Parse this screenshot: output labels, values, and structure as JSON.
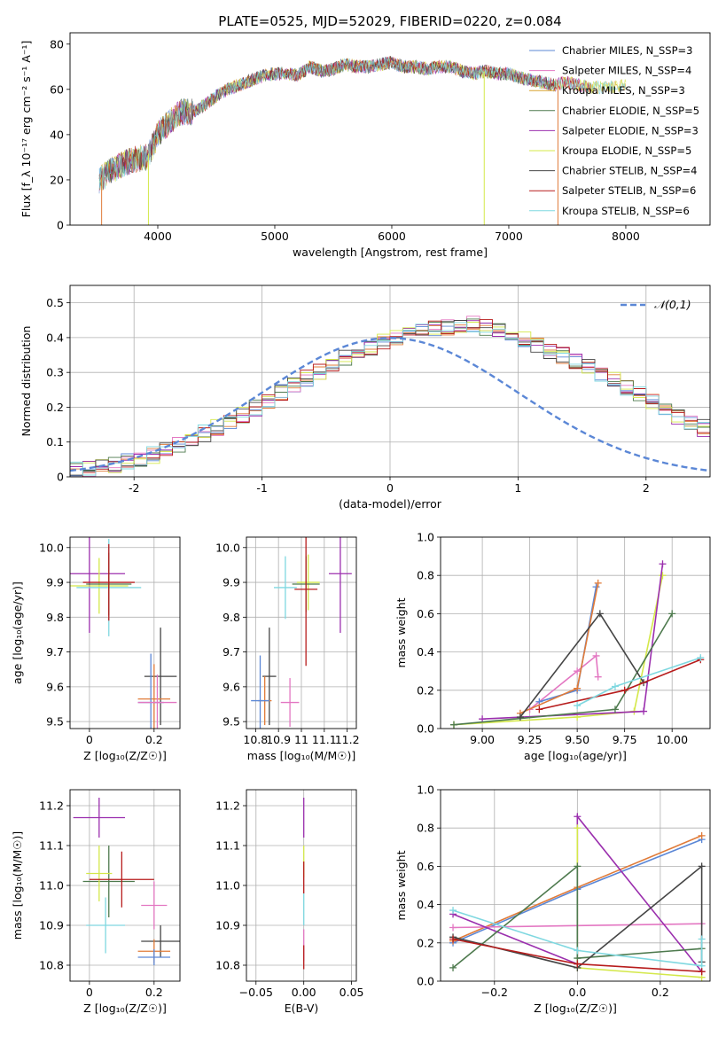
{
  "figure": {
    "title": "PLATE=0525, MJD=52029, FIBERID=0220, z=0.084"
  },
  "chart_data": [
    {
      "id": "spectrum",
      "type": "line",
      "xlabel": "wavelength [Angstrom, rest frame]",
      "ylabel": "Flux [f_λ 10⁻¹⁷ erg cm⁻² s⁻¹ A⁻¹]",
      "xlim": [
        3250,
        8720
      ],
      "ylim": [
        0,
        85
      ],
      "xticks": [
        4000,
        5000,
        6000,
        7000,
        8000
      ],
      "yticks": [
        0,
        20,
        40,
        60,
        80
      ],
      "grid": false,
      "legend_position": "right",
      "continuum": {
        "x": [
          3500,
          3600,
          3700,
          3800,
          3900,
          3950,
          4000,
          4100,
          4200,
          4300,
          4400,
          4500,
          4600,
          4700,
          4800,
          4900,
          5000,
          5100,
          5200,
          5300,
          5400,
          5500,
          5600,
          5700,
          5800,
          5900,
          6000,
          6100,
          6200,
          6300,
          6400,
          6500,
          6600,
          6700,
          6800,
          6900,
          7000,
          7100,
          7200,
          7300,
          7400,
          7500,
          7600,
          7700,
          7800,
          7900,
          8000,
          8100,
          8200,
          8300
        ],
        "y": [
          20,
          24,
          27,
          29,
          30,
          34,
          40,
          46,
          50,
          50,
          53,
          57,
          60,
          62,
          64,
          66,
          67,
          67,
          66,
          70,
          68,
          69,
          71,
          70,
          70,
          71,
          72,
          70,
          70,
          69,
          70,
          70,
          68,
          67,
          68,
          67,
          67,
          65,
          64,
          63,
          62,
          63,
          62,
          61,
          61,
          61,
          62,
          60,
          58,
          59
        ]
      },
      "series": [
        {
          "name": "Chabrier MILES, N_SSP=3",
          "color": "#5b87d6"
        },
        {
          "name": "Salpeter MILES, N_SSP=4",
          "color": "#e377c2"
        },
        {
          "name": "Kroupa MILES, N_SSP=3",
          "color": "#d9a430"
        },
        {
          "name": "Chabrier ELODIE, N_SSP=5",
          "color": "#4e7a4e"
        },
        {
          "name": "Salpeter ELODIE, N_SSP=3",
          "color": "#9b2fae"
        },
        {
          "name": "Kroupa ELODIE, N_SSP=5",
          "color": "#d4e84a"
        },
        {
          "name": "Chabrier STELIB, N_SSP=4",
          "color": "#454545"
        },
        {
          "name": "Salpeter STELIB, N_SSP=6",
          "color": "#b71c1c"
        },
        {
          "name": "Kroupa STELIB, N_SSP=6",
          "color": "#7fd8e0"
        }
      ],
      "dropouts": [
        {
          "x": 3520,
          "color": "#e07b39"
        },
        {
          "x": 3920,
          "color": "#d4e84a"
        },
        {
          "x": 6790,
          "color": "#d4e84a"
        },
        {
          "x": 7420,
          "color": "#e07b39"
        }
      ]
    },
    {
      "id": "residuals",
      "type": "histogram",
      "xlabel": "(data-model)/error",
      "ylabel": "Normed distribution",
      "xlim": [
        -2.5,
        2.5
      ],
      "ylim": [
        0,
        0.55
      ],
      "xticks": [
        -2,
        -1,
        0,
        1,
        2
      ],
      "yticks": [
        0.0,
        0.1,
        0.2,
        0.3,
        0.4,
        0.5
      ],
      "grid": true,
      "legend_position": "top-right",
      "legend_label": "𝒩(0,1)",
      "bin_width": 0.1,
      "base": [
        0.018,
        0.022,
        0.028,
        0.034,
        0.042,
        0.052,
        0.062,
        0.076,
        0.092,
        0.108,
        0.124,
        0.142,
        0.16,
        0.18,
        0.2,
        0.222,
        0.244,
        0.264,
        0.284,
        0.304,
        0.322,
        0.34,
        0.358,
        0.372,
        0.386,
        0.398,
        0.408,
        0.418,
        0.426,
        0.432,
        0.438,
        0.438,
        0.43,
        0.418,
        0.406,
        0.392,
        0.378,
        0.364,
        0.348,
        0.332,
        0.316,
        0.296,
        0.276,
        0.256,
        0.234,
        0.214,
        0.196,
        0.176,
        0.158,
        0.14
      ],
      "line_colors": [
        "#5b87d6",
        "#e377c2",
        "#e07b39",
        "#4e7a4e",
        "#9b2fae",
        "#d4e84a",
        "#454545",
        "#b71c1c",
        "#7fd8e0"
      ],
      "gauss_color": "#5b87d6"
    },
    {
      "id": "age-vs-z",
      "type": "errorbar",
      "xlabel": "Z [log₁₀(Z/Z☉)]",
      "ylabel": "age  [log₁₀(age/yr)]",
      "xlim": [
        -0.06,
        0.28
      ],
      "ylim": [
        9.48,
        10.03
      ],
      "xticks": [
        0.0,
        0.2
      ],
      "yticks": [
        9.5,
        9.6,
        9.7,
        9.8,
        9.9,
        10.0
      ],
      "ytick_labels": [
        "9.5",
        "9.6",
        "9.7",
        "9.8",
        "9.9",
        "10.0"
      ],
      "grid": true,
      "points": [
        {
          "x": 0.0,
          "y": 9.925,
          "xe": 0.11,
          "ye": 0.17,
          "color": "#9b2fae"
        },
        {
          "x": 0.03,
          "y": 9.89,
          "xe": 0.09,
          "ye": 0.08,
          "color": "#d4e84a"
        },
        {
          "x": 0.06,
          "y": 9.885,
          "xe": 0.1,
          "ye": 0.14,
          "color": "#7fd8e0"
        },
        {
          "x": 0.06,
          "y": 9.895,
          "xe": 0.07,
          "ye": 0.09,
          "color": "#4e7a4e"
        },
        {
          "x": 0.06,
          "y": 9.9,
          "xe": 0.08,
          "ye": 0.11,
          "color": "#b71c1c"
        },
        {
          "x": 0.22,
          "y": 9.63,
          "xe": 0.05,
          "ye": 0.14,
          "color": "#454545"
        },
        {
          "x": 0.2,
          "y": 9.565,
          "xe": 0.05,
          "ye": 0.1,
          "color": "#e07b39"
        },
        {
          "x": 0.19,
          "y": 9.555,
          "xe": 0.04,
          "ye": 0.14,
          "color": "#5b87d6"
        },
        {
          "x": 0.21,
          "y": 9.555,
          "xe": 0.06,
          "ye": 0.08,
          "color": "#e377c2"
        }
      ]
    },
    {
      "id": "age-vs-mass",
      "type": "errorbar",
      "xlabel": "mass [log₁₀(M/M☉)]",
      "ylabel": "",
      "xlim": [
        10.76,
        11.24
      ],
      "ylim": [
        9.48,
        10.03
      ],
      "xticks": [
        10.8,
        10.9,
        11.0,
        11.1,
        11.2
      ],
      "yticks": [
        9.5,
        9.6,
        9.7,
        9.8,
        9.9,
        10.0
      ],
      "ytick_labels": [
        "9.5",
        "9.6",
        "9.7",
        "9.8",
        "9.9",
        "10.0"
      ],
      "grid": true,
      "points": [
        {
          "x": 11.17,
          "y": 9.925,
          "xe": 0.05,
          "ye": 0.17,
          "color": "#9b2fae"
        },
        {
          "x": 10.93,
          "y": 9.885,
          "xe": 0.05,
          "ye": 0.09,
          "color": "#7fd8e0"
        },
        {
          "x": 11.03,
          "y": 9.9,
          "xe": 0.05,
          "ye": 0.08,
          "color": "#d4e84a"
        },
        {
          "x": 11.02,
          "y": 9.895,
          "xe": 0.06,
          "ye": 0.08,
          "color": "#4e7a4e"
        },
        {
          "x": 11.02,
          "y": 9.88,
          "xe": 0.05,
          "ye": 0.22,
          "color": "#b71c1c"
        },
        {
          "x": 10.86,
          "y": 9.63,
          "xe": 0.03,
          "ye": 0.14,
          "color": "#454545"
        },
        {
          "x": 10.84,
          "y": 9.56,
          "xe": 0.03,
          "ye": 0.07,
          "color": "#e07b39"
        },
        {
          "x": 10.82,
          "y": 9.56,
          "xe": 0.04,
          "ye": 0.13,
          "color": "#5b87d6"
        },
        {
          "x": 10.95,
          "y": 9.555,
          "xe": 0.04,
          "ye": 0.07,
          "color": "#e377c2"
        }
      ]
    },
    {
      "id": "mass-weight-vs-age",
      "type": "line",
      "xlabel": "age  [log₁₀(age/yr)]",
      "ylabel": "mass weight",
      "xlim": [
        8.78,
        10.2
      ],
      "ylim": [
        0,
        1.0
      ],
      "xticks": [
        9.0,
        9.25,
        9.5,
        9.75,
        10.0
      ],
      "yticks": [
        0.0,
        0.2,
        0.4,
        0.6,
        0.8,
        1.0
      ],
      "xtick_labels": [
        "9.00",
        "9.25",
        "9.50",
        "9.75",
        "10.00"
      ],
      "ytick_labels": [
        "0.0",
        "0.2",
        "0.4",
        "0.6",
        "0.8",
        "1.0"
      ],
      "grid": true,
      "series": [
        {
          "color": "#d4e84a",
          "x": [
            8.85,
            9.5,
            9.8,
            9.95
          ],
          "y": [
            0.02,
            0.06,
            0.09,
            0.8
          ]
        },
        {
          "color": "#9b2fae",
          "x": [
            9.0,
            9.85,
            9.95
          ],
          "y": [
            0.05,
            0.09,
            0.86
          ]
        },
        {
          "color": "#e377c2",
          "x": [
            9.25,
            9.5,
            9.6,
            9.61
          ],
          "y": [
            0.1,
            0.3,
            0.38,
            0.27
          ]
        },
        {
          "color": "#5b87d6",
          "x": [
            9.3,
            9.5,
            9.6
          ],
          "y": [
            0.14,
            0.2,
            0.74
          ]
        },
        {
          "color": "#e07b39",
          "x": [
            9.2,
            9.5,
            9.61
          ],
          "y": [
            0.08,
            0.21,
            0.76
          ]
        },
        {
          "color": "#4e7a4e",
          "x": [
            8.85,
            9.7,
            10.0
          ],
          "y": [
            0.02,
            0.1,
            0.6
          ]
        },
        {
          "color": "#454545",
          "x": [
            9.2,
            9.62,
            9.85
          ],
          "y": [
            0.06,
            0.6,
            0.24
          ]
        },
        {
          "color": "#b71c1c",
          "x": [
            9.3,
            9.75,
            10.15
          ],
          "y": [
            0.1,
            0.2,
            0.36
          ]
        },
        {
          "color": "#7fd8e0",
          "x": [
            9.5,
            9.7,
            10.15
          ],
          "y": [
            0.12,
            0.22,
            0.37
          ]
        }
      ]
    },
    {
      "id": "mass-vs-z",
      "type": "errorbar",
      "xlabel": "Z [log₁₀(Z/Z☉)]",
      "ylabel": "mass [log₁₀(M/M☉)]",
      "xlim": [
        -0.06,
        0.28
      ],
      "ylim": [
        10.76,
        11.24
      ],
      "xticks": [
        0.0,
        0.2
      ],
      "yticks": [
        10.8,
        10.9,
        11.0,
        11.1,
        11.2
      ],
      "ytick_labels": [
        "10.8",
        "10.9",
        "11.0",
        "11.1",
        "11.2"
      ],
      "grid": true,
      "points": [
        {
          "x": 0.03,
          "y": 11.17,
          "xe": 0.08,
          "ye": 0.05,
          "color": "#9b2fae"
        },
        {
          "x": 0.06,
          "y": 11.01,
          "xe": 0.08,
          "ye": 0.09,
          "color": "#4e7a4e"
        },
        {
          "x": 0.03,
          "y": 11.03,
          "xe": 0.04,
          "ye": 0.07,
          "color": "#d4e84a"
        },
        {
          "x": 0.1,
          "y": 11.015,
          "xe": 0.1,
          "ye": 0.07,
          "color": "#b71c1c"
        },
        {
          "x": 0.05,
          "y": 10.9,
          "xe": 0.06,
          "ye": 0.07,
          "color": "#7fd8e0"
        },
        {
          "x": 0.2,
          "y": 10.95,
          "xe": 0.04,
          "ye": 0.06,
          "color": "#e377c2"
        },
        {
          "x": 0.22,
          "y": 10.86,
          "xe": 0.06,
          "ye": 0.04,
          "color": "#454545"
        },
        {
          "x": 0.2,
          "y": 10.835,
          "xe": 0.05,
          "ye": 0.03,
          "color": "#e07b39"
        },
        {
          "x": 0.2,
          "y": 10.82,
          "xe": 0.05,
          "ye": 0.02,
          "color": "#5b87d6"
        }
      ]
    },
    {
      "id": "mass-vs-ebv",
      "type": "errorbar",
      "xlabel": "E(B-V)",
      "ylabel": "",
      "xlim": [
        -0.06,
        0.055
      ],
      "ylim": [
        10.76,
        11.24
      ],
      "xticks": [
        -0.05,
        0.0,
        0.05
      ],
      "xtick_labels": [
        "−0.05",
        "0.00",
        "0.05"
      ],
      "yticks": [
        10.8,
        10.9,
        11.0,
        11.1,
        11.2
      ],
      "ytick_labels": [
        "10.8",
        "10.9",
        "11.0",
        "11.1",
        "11.2"
      ],
      "grid": true,
      "points": [
        {
          "x": 0.0,
          "y": 11.17,
          "xe": 0,
          "ye": 0.05,
          "color": "#9b2fae"
        },
        {
          "x": 0.0,
          "y": 11.06,
          "xe": 0,
          "ye": 0.04,
          "color": "#d4e84a"
        },
        {
          "x": 0.0,
          "y": 11.02,
          "xe": 0,
          "ye": 0.04,
          "color": "#b71c1c"
        },
        {
          "x": 0.0,
          "y": 10.94,
          "xe": 0,
          "ye": 0.04,
          "color": "#7fd8e0"
        },
        {
          "x": 0.0,
          "y": 10.85,
          "xe": 0,
          "ye": 0.04,
          "color": "#e377c2"
        },
        {
          "x": 0.0,
          "y": 10.82,
          "xe": 0,
          "ye": 0.03,
          "color": "#b71c1c"
        }
      ]
    },
    {
      "id": "mass-weight-vs-z",
      "type": "line",
      "xlabel": "Z [log₁₀(Z/Z☉)]",
      "ylabel": "mass weight",
      "xlim": [
        -0.33,
        0.32
      ],
      "ylim": [
        0,
        1.0
      ],
      "xticks": [
        -0.2,
        0.0,
        0.2
      ],
      "xtick_labels": [
        "−0.2",
        "0.0",
        "0.2"
      ],
      "yticks": [
        0.0,
        0.2,
        0.4,
        0.6,
        0.8,
        1.0
      ],
      "ytick_labels": [
        "0.0",
        "0.2",
        "0.4",
        "0.6",
        "0.8",
        "1.0"
      ],
      "grid": true,
      "series": [
        {
          "color": "#5b87d6",
          "x": [
            -0.3,
            0.0,
            0.3
          ],
          "y": [
            0.2,
            0.48,
            0.74
          ]
        },
        {
          "color": "#e07b39",
          "x": [
            -0.3,
            0.0,
            0.3
          ],
          "y": [
            0.21,
            0.49,
            0.76
          ]
        },
        {
          "color": "#e377c2",
          "x": [
            -0.3,
            0.3
          ],
          "y": [
            0.28,
            0.3
          ]
        },
        {
          "color": "#9b2fae",
          "x": [
            -0.3,
            0.0,
            0.0,
            0.3
          ],
          "y": [
            0.35,
            0.09,
            0.86,
            0.05
          ]
        },
        {
          "color": "#d4e84a",
          "x": [
            0.0,
            0.0,
            0.3
          ],
          "y": [
            0.8,
            0.07,
            0.02
          ]
        },
        {
          "color": "#4e7a4e",
          "x": [
            -0.3,
            0.0,
            0.0,
            0.3
          ],
          "y": [
            0.07,
            0.6,
            0.12,
            0.17
          ]
        },
        {
          "color": "#454545",
          "x": [
            -0.3,
            0.0,
            0.3,
            0.3
          ],
          "y": [
            0.23,
            0.07,
            0.6,
            0.1
          ]
        },
        {
          "color": "#7fd8e0",
          "x": [
            -0.3,
            0.0,
            0.3,
            0.3
          ],
          "y": [
            0.37,
            0.16,
            0.08,
            0.22
          ]
        },
        {
          "color": "#b71c1c",
          "x": [
            -0.3,
            0.0,
            0.3
          ],
          "y": [
            0.22,
            0.09,
            0.05
          ]
        }
      ]
    }
  ]
}
